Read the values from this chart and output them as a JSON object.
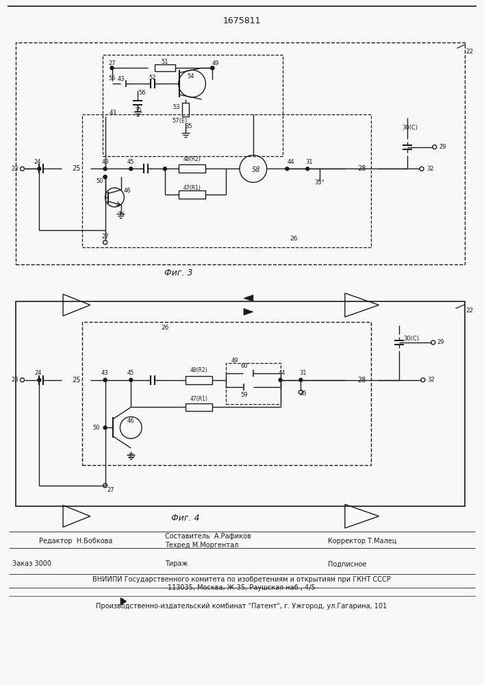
{
  "title": "1675811",
  "fig3_label": "Фиг. 3",
  "fig4_label": "Фиг. 4",
  "editor_line": "Редактор  Н.Бобкова",
  "composer_line1": "Составитель  А.Рафиков",
  "composer_line2": "Техред М.Моргентал",
  "corrector_line": "Корректор Т.Малец",
  "order_line": "Заказ 3000",
  "tirazh_line": "Тираж",
  "podpisnoe_line": "Подписное",
  "vniip_line": "ВНИИПИ Государственного комитета по изобретениям и открытиям при ГКНТ СССР",
  "address_line": "113035, Москва, Ж-35, Раушская наб., 4/5",
  "plant_line": "Производственно-издательский комбинат \"Патент\", г. Ужгород, ул.Гагарина, 101",
  "bg_color": "#f8f8f8",
  "line_color": "#1a1a1a"
}
